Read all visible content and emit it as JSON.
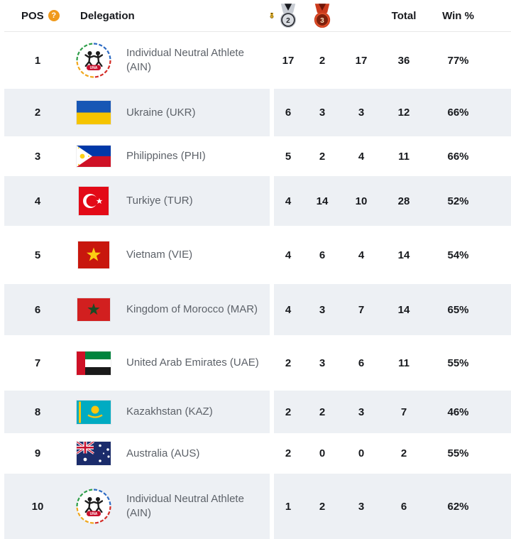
{
  "colors": {
    "help_badge": "#F09A1C",
    "row_alt_background": "#EDF0F4",
    "gold_medal": "#F3BE2A",
    "silver_medal": "#D9DCE1",
    "bronze_medal": "#CB3A1C",
    "header_text": "#17191D",
    "delegation_text": "#5D6269"
  },
  "header": {
    "pos_label": "POS",
    "help_icon": "?",
    "delegation_label": "Delegation",
    "gold_medal_label": "1",
    "silver_medal_label": "2",
    "bronze_medal_label": "3",
    "total_label": "Total",
    "win_label": "Win %"
  },
  "ain_logo_text": "UNA",
  "rows": [
    {
      "pos": "1",
      "delegation": "Individual Neutral Athlete (AIN)",
      "flag": "AIN",
      "gold": "17",
      "silver": "2",
      "bronze": "17",
      "total": "36",
      "win": "77%"
    },
    {
      "pos": "2",
      "delegation": "Ukraine (UKR)",
      "flag": "UKR",
      "gold": "6",
      "silver": "3",
      "bronze": "3",
      "total": "12",
      "win": "66%"
    },
    {
      "pos": "3",
      "delegation": "Philippines (PHI)",
      "flag": "PHI",
      "gold": "5",
      "silver": "2",
      "bronze": "4",
      "total": "11",
      "win": "66%"
    },
    {
      "pos": "4",
      "delegation": "Turkiye (TUR)",
      "flag": "TUR",
      "gold": "4",
      "silver": "14",
      "bronze": "10",
      "total": "28",
      "win": "52%"
    },
    {
      "pos": "5",
      "delegation": "Vietnam (VIE)",
      "flag": "VIE",
      "gold": "4",
      "silver": "6",
      "bronze": "4",
      "total": "14",
      "win": "54%"
    },
    {
      "pos": "6",
      "delegation": "Kingdom of Morocco (MAR)",
      "flag": "MAR",
      "gold": "4",
      "silver": "3",
      "bronze": "7",
      "total": "14",
      "win": "65%"
    },
    {
      "pos": "7",
      "delegation": "United Arab Emirates (UAE)",
      "flag": "UAE",
      "gold": "2",
      "silver": "3",
      "bronze": "6",
      "total": "11",
      "win": "55%"
    },
    {
      "pos": "8",
      "delegation": "Kazakhstan (KAZ)",
      "flag": "KAZ",
      "gold": "2",
      "silver": "2",
      "bronze": "3",
      "total": "7",
      "win": "46%"
    },
    {
      "pos": "9",
      "delegation": "Australia (AUS)",
      "flag": "AUS",
      "gold": "2",
      "silver": "0",
      "bronze": "0",
      "total": "2",
      "win": "55%"
    },
    {
      "pos": "10",
      "delegation": "Individual Neutral Athlete (AIN)",
      "flag": "AIN",
      "gold": "1",
      "silver": "2",
      "bronze": "3",
      "total": "6",
      "win": "62%"
    }
  ]
}
